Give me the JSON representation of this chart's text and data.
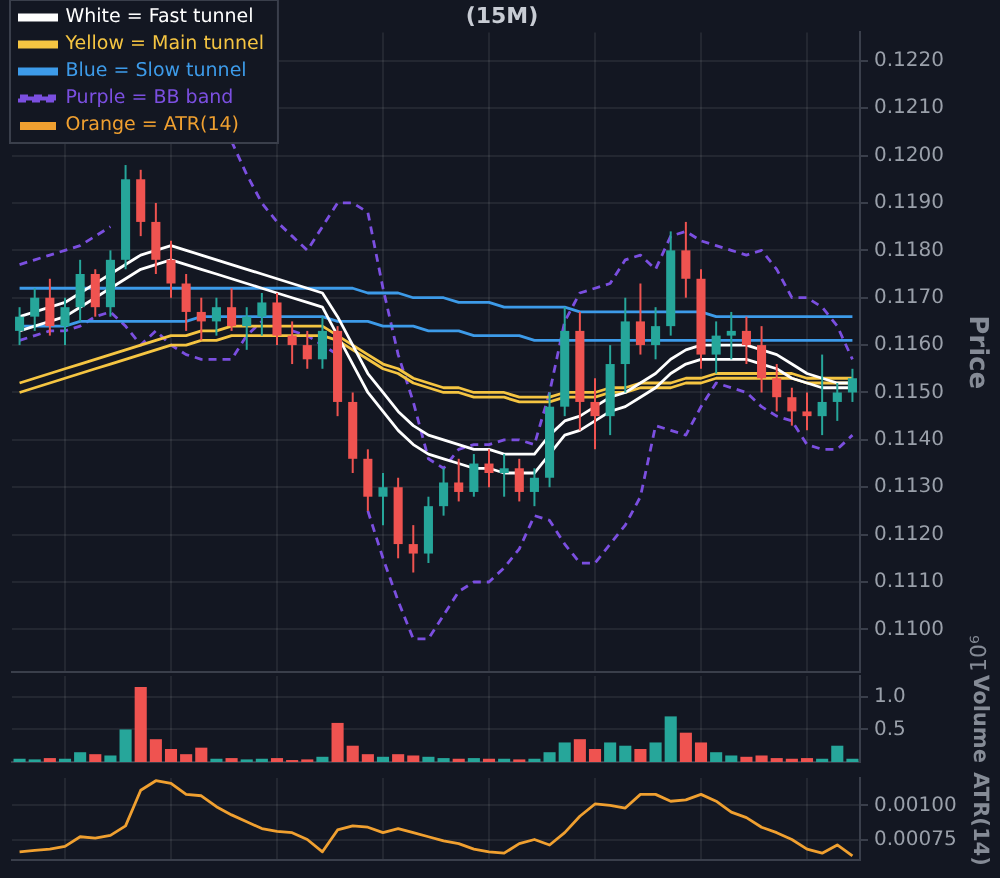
{
  "chart_data": [
    {
      "type": "candlestick",
      "title": "(15M)",
      "ylabel": "Price",
      "categories": [
        null,
        null,
        null,
        null,
        null,
        null,
        null,
        null,
        null,
        null,
        null,
        null,
        null,
        null,
        null,
        null,
        null,
        null,
        null,
        null,
        null,
        null,
        null,
        null,
        null,
        null,
        null,
        null,
        null,
        null,
        null,
        null,
        null,
        null,
        null,
        null,
        null,
        null,
        null,
        null,
        null,
        null,
        null,
        null,
        null,
        null,
        null,
        null,
        null,
        null,
        null,
        null,
        null,
        null,
        null,
        null
      ],
      "ohlc": [
        [
          0.1163,
          0.1168,
          0.116,
          0.1166
        ],
        [
          0.1166,
          0.1172,
          0.1163,
          0.117
        ],
        [
          0.117,
          0.1174,
          0.1162,
          0.1164
        ],
        [
          0.1164,
          0.117,
          0.116,
          0.1168
        ],
        [
          0.1168,
          0.1178,
          0.1165,
          0.1175
        ],
        [
          0.1175,
          0.1176,
          0.1166,
          0.1168
        ],
        [
          0.1168,
          0.118,
          0.1166,
          0.1178
        ],
        [
          0.1178,
          0.1198,
          0.1176,
          0.1195
        ],
        [
          0.1195,
          0.1197,
          0.1183,
          0.1186
        ],
        [
          0.1186,
          0.119,
          0.1175,
          0.1178
        ],
        [
          0.1178,
          0.1182,
          0.117,
          0.1173
        ],
        [
          0.1173,
          0.1175,
          0.1163,
          0.1167
        ],
        [
          0.1167,
          0.117,
          0.1161,
          0.1165
        ],
        [
          0.1165,
          0.117,
          0.1162,
          0.1168
        ],
        [
          0.1168,
          0.1172,
          0.1163,
          0.1164
        ],
        [
          0.1164,
          0.1168,
          0.1159,
          0.1166
        ],
        [
          0.1166,
          0.1171,
          0.1162,
          0.1169
        ],
        [
          0.1169,
          0.1171,
          0.116,
          0.1162
        ],
        [
          0.1162,
          0.1165,
          0.1156,
          0.116
        ],
        [
          0.116,
          0.1163,
          0.1155,
          0.1157
        ],
        [
          0.1157,
          0.1166,
          0.1155,
          0.1163
        ],
        [
          0.1163,
          0.1164,
          0.1145,
          0.1148
        ],
        [
          0.1148,
          0.115,
          0.1133,
          0.1136
        ],
        [
          0.1136,
          0.1138,
          0.1125,
          0.1128
        ],
        [
          0.1128,
          0.1133,
          0.1122,
          0.113
        ],
        [
          0.113,
          0.1132,
          0.1115,
          0.1118
        ],
        [
          0.1118,
          0.1122,
          0.1112,
          0.1116
        ],
        [
          0.1116,
          0.1128,
          0.1114,
          0.1126
        ],
        [
          0.1126,
          0.1134,
          0.1124,
          0.1131
        ],
        [
          0.1131,
          0.1136,
          0.1127,
          0.1129
        ],
        [
          0.1129,
          0.1137,
          0.1128,
          0.1135
        ],
        [
          0.1135,
          0.1138,
          0.113,
          0.1133
        ],
        [
          0.1133,
          0.1137,
          0.1128,
          0.1134
        ],
        [
          0.1134,
          0.1136,
          0.1127,
          0.1129
        ],
        [
          0.1129,
          0.1134,
          0.1126,
          0.1132
        ],
        [
          0.1132,
          0.115,
          0.113,
          0.1147
        ],
        [
          0.1147,
          0.1168,
          0.1145,
          0.1163
        ],
        [
          0.1163,
          0.1167,
          0.1142,
          0.1148
        ],
        [
          0.1148,
          0.1153,
          0.1138,
          0.1145
        ],
        [
          0.1145,
          0.116,
          0.1141,
          0.1156
        ],
        [
          0.1156,
          0.117,
          0.115,
          0.1165
        ],
        [
          0.1165,
          0.1173,
          0.1158,
          0.116
        ],
        [
          0.116,
          0.1168,
          0.1157,
          0.1164
        ],
        [
          0.1164,
          0.1184,
          0.1162,
          0.118
        ],
        [
          0.118,
          0.1186,
          0.117,
          0.1174
        ],
        [
          0.1174,
          0.1176,
          0.1155,
          0.1158
        ],
        [
          0.1158,
          0.1165,
          0.1154,
          0.1162
        ],
        [
          0.1162,
          0.1167,
          0.1157,
          0.1163
        ],
        [
          0.1163,
          0.1166,
          0.1156,
          0.116
        ],
        [
          0.116,
          0.1164,
          0.115,
          0.1153
        ],
        [
          0.1153,
          0.1156,
          0.1146,
          0.1149
        ],
        [
          0.1149,
          0.1151,
          0.1143,
          0.1146
        ],
        [
          0.1146,
          0.115,
          0.1142,
          0.1145
        ],
        [
          0.1145,
          0.1158,
          0.1141,
          0.1148
        ],
        [
          0.1148,
          0.1152,
          0.1144,
          0.115
        ],
        [
          0.115,
          0.1155,
          0.1148,
          0.1153
        ]
      ],
      "colors": [
        "#26a69a",
        "#26a69a",
        "#ef5350",
        "#26a69a",
        "#26a69a",
        "#ef5350",
        "#26a69a",
        "#26a69a",
        "#ef5350",
        "#ef5350",
        "#ef5350",
        "#ef5350",
        "#ef5350",
        "#26a69a",
        "#ef5350",
        "#26a69a",
        "#26a69a",
        "#ef5350",
        "#ef5350",
        "#ef5350",
        "#26a69a",
        "#ef5350",
        "#ef5350",
        "#ef5350",
        "#26a69a",
        "#ef5350",
        "#ef5350",
        "#26a69a",
        "#26a69a",
        "#ef5350",
        "#26a69a",
        "#ef5350",
        "#26a69a",
        "#ef5350",
        "#26a69a",
        "#26a69a",
        "#26a69a",
        "#ef5350",
        "#ef5350",
        "#26a69a",
        "#26a69a",
        "#ef5350",
        "#26a69a",
        "#26a69a",
        "#ef5350",
        "#ef5350",
        "#26a69a",
        "#26a69a",
        "#ef5350",
        "#ef5350",
        "#ef5350",
        "#ef5350",
        "#ef5350",
        "#26a69a",
        "#26a69a",
        "#26a69a"
      ],
      "series": [
        {
          "type": "line",
          "name": "White = Fast tunnel",
          "color": "#ffffff",
          "values": [
            0.1166,
            0.1167,
            0.1168,
            0.1169,
            0.1171,
            0.1173,
            0.1175,
            0.1177,
            0.1179,
            0.118,
            0.1181,
            0.118,
            0.1179,
            0.1178,
            0.1177,
            0.1176,
            0.1175,
            0.1174,
            0.1173,
            0.1172,
            0.1171,
            0.1166,
            0.116,
            0.1154,
            0.115,
            0.1146,
            0.1143,
            0.1141,
            0.114,
            0.1139,
            0.1138,
            0.1138,
            0.1137,
            0.1137,
            0.1137,
            0.1141,
            0.1144,
            0.1145,
            0.1147,
            0.1149,
            0.115,
            0.1152,
            0.1154,
            0.1157,
            0.1159,
            0.116,
            0.116,
            0.116,
            0.116,
            0.1159,
            0.1158,
            0.1156,
            0.1154,
            0.1153,
            0.1152,
            0.1152
          ]
        },
        {
          "type": "line",
          "color": "#ffffff",
          "values": [
            0.1163,
            0.1164,
            0.1165,
            0.1166,
            0.1168,
            0.117,
            0.1172,
            0.1174,
            0.1176,
            0.1177,
            0.1178,
            0.1177,
            0.1176,
            0.1175,
            0.1174,
            0.1173,
            0.1172,
            0.1171,
            0.117,
            0.1169,
            0.1168,
            0.1162,
            0.1156,
            0.115,
            0.1146,
            0.1142,
            0.1139,
            0.1137,
            0.1136,
            0.1135,
            0.1134,
            0.1134,
            0.1133,
            0.1133,
            0.1133,
            0.1137,
            0.1141,
            0.1142,
            0.1144,
            0.1146,
            0.1147,
            0.1149,
            0.1151,
            0.1154,
            0.1156,
            0.1157,
            0.1157,
            0.1157,
            0.1157,
            0.1156,
            0.1155,
            0.1153,
            0.1152,
            0.1151,
            0.1151,
            0.1151
          ]
        },
        {
          "type": "line",
          "name": "Yellow = Main tunnel",
          "color": "#f5c542",
          "values": [
            0.1152,
            0.1153,
            0.1154,
            0.1155,
            0.1156,
            0.1157,
            0.1158,
            0.1159,
            0.116,
            0.1161,
            0.1162,
            0.1162,
            0.1163,
            0.1163,
            0.1164,
            0.1164,
            0.1164,
            0.1164,
            0.1164,
            0.1164,
            0.1164,
            0.1162,
            0.116,
            0.1158,
            0.1156,
            0.1155,
            0.1153,
            0.1152,
            0.1151,
            0.1151,
            0.115,
            0.115,
            0.115,
            0.1149,
            0.1149,
            0.1149,
            0.115,
            0.115,
            0.115,
            0.1151,
            0.1151,
            0.1152,
            0.1152,
            0.1152,
            0.1153,
            0.1153,
            0.1154,
            0.1154,
            0.1154,
            0.1154,
            0.1154,
            0.1154,
            0.1153,
            0.1153,
            0.1153,
            0.1153
          ]
        },
        {
          "type": "line",
          "color": "#f5c542",
          "values": [
            0.115,
            0.1151,
            0.1152,
            0.1153,
            0.1154,
            0.1155,
            0.1156,
            0.1157,
            0.1158,
            0.1159,
            0.116,
            0.116,
            0.1161,
            0.1161,
            0.1162,
            0.1162,
            0.1162,
            0.1162,
            0.1162,
            0.1162,
            0.1162,
            0.1161,
            0.1159,
            0.1157,
            0.1155,
            0.1154,
            0.1152,
            0.1151,
            0.115,
            0.115,
            0.1149,
            0.1149,
            0.1149,
            0.1148,
            0.1148,
            0.1148,
            0.1149,
            0.1149,
            0.1149,
            0.115,
            0.115,
            0.1151,
            0.1151,
            0.1151,
            0.1152,
            0.1152,
            0.1153,
            0.1153,
            0.1153,
            0.1153,
            0.1153,
            0.1153,
            0.1152,
            0.1152,
            0.1152,
            0.1152
          ]
        },
        {
          "type": "line",
          "name": "Blue = Slow tunnel",
          "color": "#3d9be9",
          "values": [
            0.1172,
            0.1172,
            0.1172,
            0.1172,
            0.1172,
            0.1172,
            0.1172,
            0.1172,
            0.1172,
            0.1172,
            0.1172,
            0.1172,
            0.1172,
            0.1172,
            0.1172,
            0.1172,
            0.1172,
            0.1172,
            0.1172,
            0.1172,
            0.1172,
            0.1172,
            0.1172,
            0.1171,
            0.1171,
            0.1171,
            0.117,
            0.117,
            0.117,
            0.1169,
            0.1169,
            0.1169,
            0.1168,
            0.1168,
            0.1168,
            0.1168,
            0.1168,
            0.1167,
            0.1167,
            0.1167,
            0.1167,
            0.1167,
            0.1167,
            0.1167,
            0.1167,
            0.1167,
            0.1166,
            0.1166,
            0.1166,
            0.1166,
            0.1166,
            0.1166,
            0.1166,
            0.1166,
            0.1166,
            0.1166
          ]
        },
        {
          "type": "line",
          "color": "#3d9be9",
          "values": [
            0.1164,
            0.1164,
            0.1164,
            0.1164,
            0.1165,
            0.1165,
            0.1165,
            0.1165,
            0.1165,
            0.1165,
            0.1165,
            0.1165,
            0.1166,
            0.1166,
            0.1166,
            0.1166,
            0.1166,
            0.1166,
            0.1166,
            0.1166,
            0.1166,
            0.1165,
            0.1165,
            0.1165,
            0.1164,
            0.1164,
            0.1164,
            0.1163,
            0.1163,
            0.1163,
            0.1162,
            0.1162,
            0.1162,
            0.1162,
            0.1161,
            0.1161,
            0.1161,
            0.1161,
            0.1161,
            0.1161,
            0.1161,
            0.1161,
            0.1161,
            0.1161,
            0.1161,
            0.1161,
            0.1161,
            0.1161,
            0.1161,
            0.1161,
            0.1161,
            0.1161,
            0.1161,
            0.1161,
            0.1161,
            0.1161
          ]
        },
        {
          "type": "line",
          "name": "Purple = BB band",
          "color": "#7b4fe0",
          "line_style": "dashed",
          "values": [
            0.1177,
            0.1178,
            0.1179,
            0.118,
            0.1181,
            0.1183,
            0.1185,
            null,
            null,
            null,
            null,
            null,
            null,
            null,
            0.1203,
            0.1196,
            0.119,
            0.1186,
            0.1183,
            0.118,
            0.1185,
            0.119,
            0.119,
            0.1188,
            0.1172,
            0.1158,
            0.1148,
            0.1136,
            0.1134,
            0.1138,
            0.1139,
            0.1139,
            0.114,
            0.114,
            0.1139,
            0.115,
            0.1165,
            0.1171,
            0.1172,
            0.1173,
            0.1178,
            0.1179,
            0.1176,
            0.1183,
            0.1184,
            0.1182,
            0.1181,
            0.118,
            0.1179,
            0.118,
            0.1176,
            0.117,
            0.117,
            0.1168,
            0.1164,
            0.1157
          ]
        },
        {
          "type": "line",
          "color": "#7b4fe0",
          "line_style": "dashed",
          "values": [
            0.1161,
            0.1162,
            0.1163,
            0.1163,
            0.1164,
            0.1166,
            0.1167,
            0.1164,
            0.116,
            0.1163,
            0.116,
            0.1158,
            0.1157,
            0.1157,
            0.1157,
            0.1162,
            0.1165,
            null,
            0.1163,
            0.1162,
            0.116,
            0.1158,
            null,
            0.1125,
            0.1115,
            0.1106,
            0.1098,
            0.1098,
            0.1103,
            0.1108,
            0.111,
            0.111,
            0.1113,
            0.1117,
            0.1124,
            0.1123,
            0.1118,
            0.1114,
            0.1114,
            0.1118,
            0.1122,
            0.1128,
            0.1143,
            0.1142,
            0.1141,
            0.1147,
            0.1152,
            0.1151,
            0.115,
            0.1147,
            0.1145,
            0.1144,
            0.1139,
            0.1138,
            0.1138,
            0.1141
          ]
        }
      ],
      "ylim": [
        0.1091,
        0.1226
      ],
      "yticks": [
        {
          "value": 0.11,
          "label": "0.1100"
        },
        {
          "value": 0.111,
          "label": "0.1110"
        },
        {
          "value": 0.112,
          "label": "0.1120"
        },
        {
          "value": 0.113,
          "label": "0.1130"
        },
        {
          "value": 0.114,
          "label": "0.1140"
        },
        {
          "value": 0.115,
          "label": "0.1150"
        },
        {
          "value": 0.116,
          "label": "0.1160"
        },
        {
          "value": 0.117,
          "label": "0.1170"
        },
        {
          "value": 0.118,
          "label": "0.1180"
        },
        {
          "value": 0.119,
          "label": "0.1190"
        },
        {
          "value": 0.12,
          "label": "0.1200"
        },
        {
          "value": 0.121,
          "label": "0.1210"
        },
        {
          "value": 0.122,
          "label": "0.1220"
        }
      ],
      "grid": true,
      "legend": "top left",
      "marker": "none"
    },
    {
      "type": "bar",
      "ylabel": "Volume",
      "annotations": [
        "10⁶"
      ],
      "categories": [
        null,
        null,
        null,
        null,
        null,
        null,
        null,
        null,
        null,
        null,
        null,
        null,
        null,
        null,
        null,
        null,
        null,
        null,
        null,
        null,
        null,
        null,
        null,
        null,
        null,
        null,
        null,
        null,
        null,
        null,
        null,
        null,
        null,
        null,
        null,
        null,
        null,
        null,
        null,
        null,
        null,
        null,
        null,
        null,
        null,
        null,
        null,
        null,
        null,
        null,
        null,
        null,
        null,
        null,
        null,
        null
      ],
      "colors": [
        "#26a69a",
        "#26a69a",
        "#ef5350",
        "#26a69a",
        "#26a69a",
        "#ef5350",
        "#26a69a",
        "#26a69a",
        "#ef5350",
        "#ef5350",
        "#ef5350",
        "#ef5350",
        "#ef5350",
        "#26a69a",
        "#ef5350",
        "#26a69a",
        "#26a69a",
        "#ef5350",
        "#ef5350",
        "#ef5350",
        "#26a69a",
        "#ef5350",
        "#ef5350",
        "#ef5350",
        "#26a69a",
        "#ef5350",
        "#ef5350",
        "#26a69a",
        "#26a69a",
        "#ef5350",
        "#26a69a",
        "#ef5350",
        "#26a69a",
        "#ef5350",
        "#26a69a",
        "#26a69a",
        "#26a69a",
        "#ef5350",
        "#ef5350",
        "#26a69a",
        "#26a69a",
        "#ef5350",
        "#26a69a",
        "#26a69a",
        "#ef5350",
        "#ef5350",
        "#26a69a",
        "#26a69a",
        "#ef5350",
        "#ef5350",
        "#ef5350",
        "#ef5350",
        "#ef5350",
        "#26a69a",
        "#26a69a",
        "#26a69a"
      ],
      "values": [
        0.05,
        0.04,
        0.06,
        0.05,
        0.15,
        0.12,
        0.1,
        0.5,
        1.15,
        0.35,
        0.2,
        0.12,
        0.22,
        0.05,
        0.06,
        0.04,
        0.05,
        0.06,
        0.03,
        0.04,
        0.08,
        0.6,
        0.25,
        0.12,
        0.08,
        0.12,
        0.1,
        0.08,
        0.06,
        0.05,
        0.06,
        0.05,
        0.05,
        0.04,
        0.05,
        0.15,
        0.3,
        0.35,
        0.2,
        0.3,
        0.25,
        0.2,
        0.3,
        0.7,
        0.45,
        0.3,
        0.15,
        0.1,
        0.08,
        0.1,
        0.06,
        0.05,
        0.06,
        0.05,
        0.25,
        0.05
      ],
      "ylim": [
        0,
        1.32
      ],
      "yticks": [
        0.5,
        {
          "value": 1,
          "label": "1.0"
        }
      ],
      "grid": true
    },
    {
      "type": "line",
      "ylabel": "ATR(14)",
      "categories": [
        null,
        null,
        null,
        null,
        null,
        null,
        null,
        null,
        null,
        null,
        null,
        null,
        null,
        null,
        null,
        null,
        null,
        null,
        null,
        null,
        null,
        null,
        null,
        null,
        null,
        null,
        null,
        null,
        null,
        null,
        null,
        null,
        null,
        null,
        null,
        null,
        null,
        null,
        null,
        null,
        null,
        null,
        null,
        null,
        null,
        null,
        null,
        null,
        null,
        null,
        null,
        null,
        null,
        null,
        null,
        null
      ],
      "series": [
        {
          "name": "Orange = ATR(14)",
          "color": "#f0a030",
          "values": [
            0.00066,
            0.00067,
            0.00068,
            0.0007,
            0.00077,
            0.00076,
            0.00078,
            0.00085,
            0.00111,
            0.00118,
            0.00116,
            0.00108,
            0.00107,
            0.00099,
            0.00093,
            0.00088,
            0.00083,
            0.00081,
            0.0008,
            0.00075,
            0.00066,
            0.00082,
            0.00085,
            0.00084,
            0.0008,
            0.00083,
            0.0008,
            0.00077,
            0.00074,
            0.00072,
            0.00068,
            0.00066,
            0.00065,
            0.00072,
            0.00075,
            0.00071,
            0.0008,
            0.00092,
            0.00101,
            0.001,
            0.00098,
            0.00108,
            0.00108,
            0.00103,
            0.00104,
            0.00108,
            0.00103,
            0.00095,
            0.00091,
            0.00084,
            0.0008,
            0.00075,
            0.00068,
            0.00065,
            0.00071,
            0.00063
          ]
        }
      ],
      "ylim": [
        0.0006,
        0.0012
      ],
      "yticks": [
        0.00075,
        {
          "value": 0.001,
          "label": "0.00100"
        }
      ],
      "grid": true,
      "marker": "none"
    }
  ]
}
